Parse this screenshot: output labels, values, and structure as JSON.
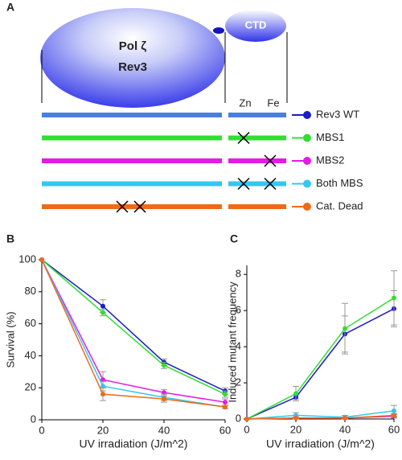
{
  "panel_a": {
    "panel_label": "A",
    "domain_name": "Pol ζ",
    "protein": "Rev3",
    "ctd": "CTD",
    "zn": "Zn",
    "fe": "Fe"
  },
  "chart_data": [
    {
      "type": "line",
      "panel_label": "B",
      "x_label": "UV irradiation (J/m^2)",
      "y_label": "Survival (%)",
      "x": [
        0,
        20,
        40,
        60
      ],
      "xlim": [
        0,
        60
      ],
      "xticks": [
        0,
        20,
        40,
        60
      ],
      "ylim": [
        0,
        100
      ],
      "yticks": [
        0,
        20,
        40,
        60,
        80,
        100
      ],
      "series": [
        {
          "name": "Rev3 WT",
          "color": "#1c1cc8",
          "values": [
            100,
            71,
            36,
            18
          ],
          "errors": [
            0,
            4,
            2,
            2
          ]
        },
        {
          "name": "MBS1",
          "color": "#33dd33",
          "values": [
            100,
            67,
            34,
            16
          ],
          "errors": [
            0,
            2,
            2,
            2
          ]
        },
        {
          "name": "MBS2",
          "color": "#e619e6",
          "values": [
            100,
            25,
            17,
            11
          ],
          "errors": [
            0,
            5,
            2,
            2
          ]
        },
        {
          "name": "Both MBS",
          "color": "#33c8ee",
          "values": [
            100,
            21,
            14,
            8
          ],
          "errors": [
            0,
            3,
            2,
            1
          ]
        },
        {
          "name": "Cat. Dead",
          "color": "#ee6a1a",
          "values": [
            100,
            16,
            13,
            8
          ],
          "errors": [
            0,
            4,
            2,
            1
          ]
        }
      ]
    },
    {
      "type": "line",
      "panel_label": "C",
      "x_label": "UV irradiation (J/m^2)",
      "y_label": "Induced mutant frequency",
      "x": [
        0,
        20,
        40,
        60
      ],
      "xlim": [
        0,
        60
      ],
      "xticks": [
        0,
        20,
        40,
        60
      ],
      "ylim": [
        0,
        8.5
      ],
      "yticks": [
        0,
        2,
        4,
        6,
        8
      ],
      "series": [
        {
          "name": "Rev3 WT",
          "color": "#1c1cc8",
          "values": [
            0,
            1.2,
            4.7,
            6.1
          ],
          "errors": [
            0,
            0.1,
            1.0,
            1.0
          ]
        },
        {
          "name": "MBS1",
          "color": "#33dd33",
          "values": [
            0,
            1.4,
            5.0,
            6.7
          ],
          "errors": [
            0,
            0.4,
            1.4,
            1.5
          ]
        },
        {
          "name": "MBS2",
          "color": "#e619e6",
          "values": [
            0,
            0.05,
            0.05,
            0.15
          ],
          "errors": [
            0,
            0.05,
            0.05,
            0.1
          ]
        },
        {
          "name": "Both MBS",
          "color": "#33c8ee",
          "values": [
            0,
            0.2,
            0.1,
            0.45
          ],
          "errors": [
            0,
            0.15,
            0.1,
            0.3
          ]
        },
        {
          "name": "Cat. Dead",
          "color": "#ee6a1a",
          "values": [
            0,
            0.05,
            0.05,
            0.2
          ],
          "errors": [
            0,
            0.05,
            0.05,
            0.1
          ]
        }
      ]
    }
  ]
}
